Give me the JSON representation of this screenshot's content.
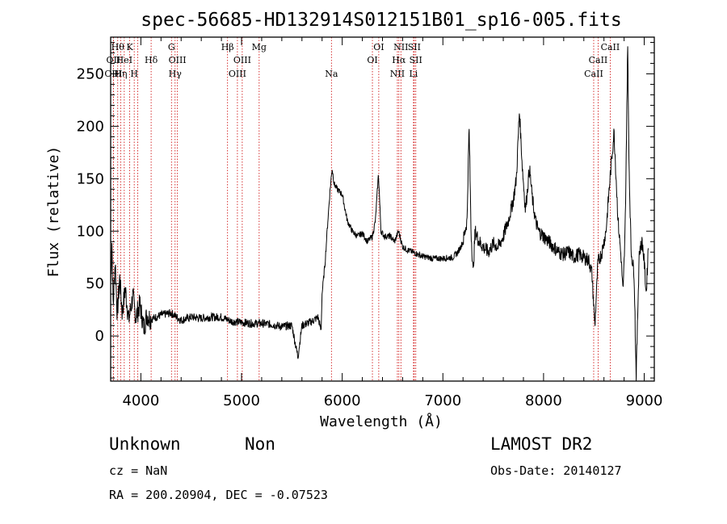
{
  "chart_data": {
    "type": "line",
    "title": "spec-56685-HD132914S012151B01_sp16-005.fits",
    "xlabel": "Wavelength (Å)",
    "ylabel": "Flux (relative)",
    "xlim": [
      3700,
      9100
    ],
    "ylim": [
      -43,
      285
    ],
    "xticks": [
      4000,
      5000,
      6000,
      7000,
      8000,
      9000
    ],
    "yticks": [
      0,
      50,
      100,
      150,
      200,
      250
    ],
    "grid": false,
    "line_color": "#000000",
    "marker_color": "#cc0000",
    "spectral_lines": [
      {
        "wavelength": 3727,
        "label": "OII",
        "row": 2
      },
      {
        "wavelength": 3727,
        "label": "OIII",
        "row": 3
      },
      {
        "wavelength": 3770,
        "label": "Hθ",
        "row": 1
      },
      {
        "wavelength": 3799,
        "label": "Hη",
        "row": 3
      },
      {
        "wavelength": 3835,
        "label": "HeI",
        "row": 2
      },
      {
        "wavelength": 3889,
        "label": "K",
        "row": 1
      },
      {
        "wavelength": 3934,
        "label": "H",
        "row": 3
      },
      {
        "wavelength": 3969,
        "label": "",
        "row": 0
      },
      {
        "wavelength": 4102,
        "label": "Hδ",
        "row": 2
      },
      {
        "wavelength": 4304,
        "label": "G",
        "row": 1
      },
      {
        "wavelength": 4340,
        "label": "Hγ",
        "row": 3
      },
      {
        "wavelength": 4363,
        "label": "OIII",
        "row": 2
      },
      {
        "wavelength": 4861,
        "label": "Hβ",
        "row": 1
      },
      {
        "wavelength": 4959,
        "label": "OIII",
        "row": 3
      },
      {
        "wavelength": 5007,
        "label": "OIII",
        "row": 2
      },
      {
        "wavelength": 5175,
        "label": "Mg",
        "row": 1
      },
      {
        "wavelength": 5893,
        "label": "Na",
        "row": 3
      },
      {
        "wavelength": 6300,
        "label": "OI",
        "row": 2
      },
      {
        "wavelength": 6363,
        "label": "OI",
        "row": 1
      },
      {
        "wavelength": 6548,
        "label": "NII",
        "row": 3
      },
      {
        "wavelength": 6563,
        "label": "Hα",
        "row": 2
      },
      {
        "wavelength": 6583,
        "label": "NII",
        "row": 1
      },
      {
        "wavelength": 6716,
        "label": "SII",
        "row": 1
      },
      {
        "wavelength": 6731,
        "label": "SII",
        "row": 2
      },
      {
        "wavelength": 6708,
        "label": "Li",
        "row": 3
      },
      {
        "wavelength": 8498,
        "label": "CaII",
        "row": 3
      },
      {
        "wavelength": 8542,
        "label": "CaII",
        "row": 2
      },
      {
        "wavelength": 8662,
        "label": "CaII",
        "row": 1
      }
    ],
    "anchors": [
      [
        3700,
        50
      ],
      [
        3712,
        90
      ],
      [
        3725,
        28
      ],
      [
        3745,
        72
      ],
      [
        3765,
        20
      ],
      [
        3790,
        55
      ],
      [
        3815,
        22
      ],
      [
        3845,
        45
      ],
      [
        3880,
        15
      ],
      [
        3920,
        38
      ],
      [
        3950,
        18
      ],
      [
        3990,
        30
      ],
      [
        4030,
        8
      ],
      [
        4060,
        20
      ],
      [
        4100,
        16
      ],
      [
        4200,
        20
      ],
      [
        4300,
        22
      ],
      [
        4400,
        15
      ],
      [
        4500,
        18
      ],
      [
        4600,
        17
      ],
      [
        4700,
        18
      ],
      [
        4800,
        18
      ],
      [
        4900,
        14
      ],
      [
        5000,
        13
      ],
      [
        5100,
        12
      ],
      [
        5200,
        12
      ],
      [
        5300,
        11
      ],
      [
        5400,
        9
      ],
      [
        5500,
        10
      ],
      [
        5560,
        -20
      ],
      [
        5600,
        10
      ],
      [
        5700,
        14
      ],
      [
        5760,
        18
      ],
      [
        5790,
        5
      ],
      [
        5800,
        40
      ],
      [
        5830,
        70
      ],
      [
        5850,
        100
      ],
      [
        5880,
        140
      ],
      [
        5900,
        160
      ],
      [
        5920,
        145
      ],
      [
        5950,
        140
      ],
      [
        6000,
        135
      ],
      [
        6050,
        110
      ],
      [
        6100,
        100
      ],
      [
        6150,
        95
      ],
      [
        6200,
        98
      ],
      [
        6250,
        90
      ],
      [
        6300,
        95
      ],
      [
        6330,
        110
      ],
      [
        6360,
        155
      ],
      [
        6385,
        100
      ],
      [
        6420,
        95
      ],
      [
        6480,
        95
      ],
      [
        6520,
        90
      ],
      [
        6560,
        100
      ],
      [
        6600,
        85
      ],
      [
        6650,
        82
      ],
      [
        6700,
        80
      ],
      [
        6750,
        78
      ],
      [
        6800,
        76
      ],
      [
        6900,
        74
      ],
      [
        7000,
        74
      ],
      [
        7100,
        75
      ],
      [
        7150,
        80
      ],
      [
        7200,
        90
      ],
      [
        7240,
        110
      ],
      [
        7260,
        200
      ],
      [
        7280,
        100
      ],
      [
        7300,
        60
      ],
      [
        7320,
        100
      ],
      [
        7360,
        90
      ],
      [
        7400,
        85
      ],
      [
        7450,
        80
      ],
      [
        7500,
        88
      ],
      [
        7550,
        85
      ],
      [
        7600,
        95
      ],
      [
        7650,
        110
      ],
      [
        7700,
        130
      ],
      [
        7730,
        150
      ],
      [
        7760,
        215
      ],
      [
        7790,
        160
      ],
      [
        7820,
        120
      ],
      [
        7860,
        160
      ],
      [
        7890,
        130
      ],
      [
        7920,
        110
      ],
      [
        7950,
        100
      ],
      [
        8000,
        95
      ],
      [
        8050,
        90
      ],
      [
        8100,
        85
      ],
      [
        8150,
        80
      ],
      [
        8200,
        78
      ],
      [
        8250,
        80
      ],
      [
        8300,
        75
      ],
      [
        8350,
        78
      ],
      [
        8400,
        75
      ],
      [
        8450,
        72
      ],
      [
        8480,
        60
      ],
      [
        8510,
        10
      ],
      [
        8540,
        70
      ],
      [
        8580,
        80
      ],
      [
        8620,
        100
      ],
      [
        8660,
        150
      ],
      [
        8700,
        195
      ],
      [
        8740,
        110
      ],
      [
        8770,
        75
      ],
      [
        8790,
        40
      ],
      [
        8810,
        100
      ],
      [
        8825,
        200
      ],
      [
        8835,
        280
      ],
      [
        8850,
        160
      ],
      [
        8870,
        80
      ],
      [
        8900,
        60
      ],
      [
        8920,
        -40
      ],
      [
        8950,
        80
      ],
      [
        8980,
        90
      ],
      [
        9000,
        70
      ],
      [
        9020,
        40
      ],
      [
        9040,
        85
      ]
    ]
  },
  "labels": {
    "object_type": "Unknown",
    "object_subtype": "Non",
    "survey": "LAMOST DR2",
    "cz": "cz = NaN",
    "obs_date": "Obs-Date: 20140127",
    "coords": "RA = 200.20904, DEC =  -0.07523"
  }
}
